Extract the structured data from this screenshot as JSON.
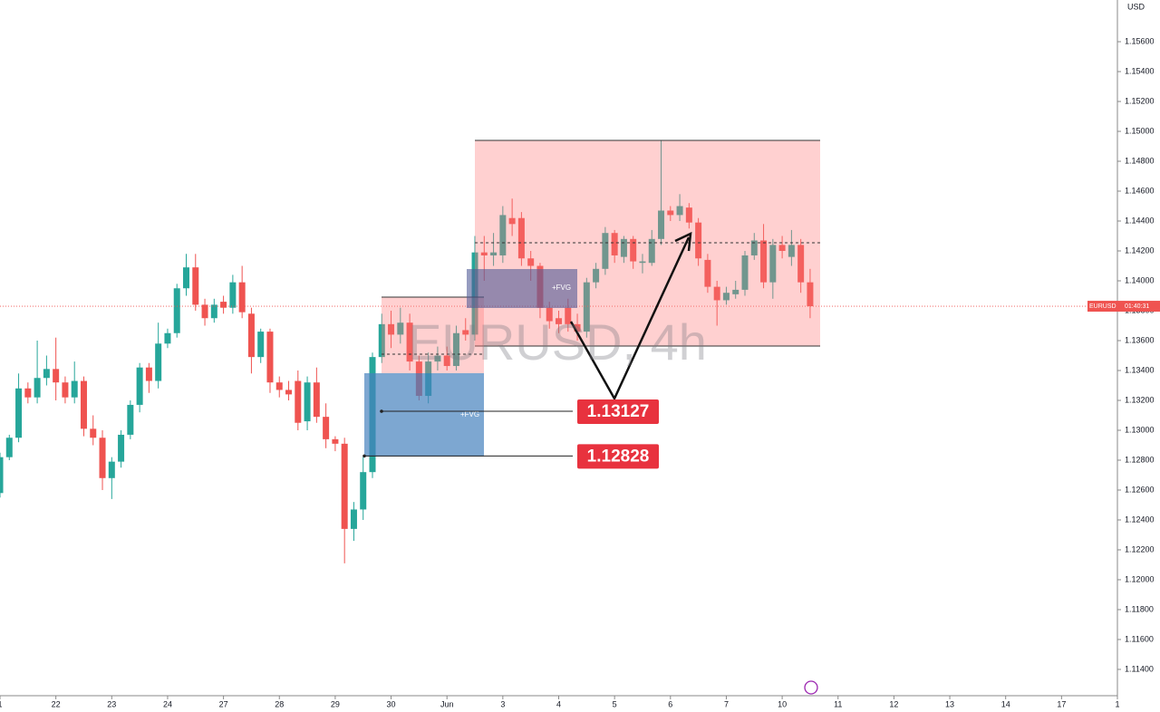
{
  "chart_data": {
    "type": "candlestick",
    "title": "EURUSD, 4h",
    "currency": "USD",
    "up_color": "#26a69a",
    "down_color": "#ef5350",
    "open": [
      1.1258,
      1.1282,
      1.1295,
      1.1328,
      1.1322,
      1.1335,
      1.1341,
      1.1332,
      1.1322,
      1.1333,
      1.1301,
      1.1295,
      1.1268,
      1.1279,
      1.1297,
      1.1317,
      1.1342,
      1.1333,
      1.1358,
      1.1365,
      1.1395,
      1.1409,
      1.1384,
      1.1375,
      1.1386,
      1.1382,
      1.1399,
      1.1378,
      1.1349,
      1.1366,
      1.1332,
      1.1327,
      1.1333,
      1.1306,
      1.1332,
      1.1309,
      1.1294,
      1.1291,
      1.1234,
      1.1247,
      1.1272,
      1.1349,
      1.1371,
      1.1364,
      1.1372,
      1.1346,
      1.1323,
      1.1346,
      1.135,
      1.1343,
      1.1367,
      1.1364,
      1.1419,
      1.1417,
      1.1417,
      1.1442,
      1.1442,
      1.1415,
      1.141,
      1.1382,
      1.1375,
      1.1382,
      1.1371,
      1.1366,
      1.1399,
      1.1408,
      1.1432,
      1.1416,
      1.1428,
      1.1412,
      1.1412,
      1.1428,
      1.1447,
      1.1444,
      1.1449,
      1.1439,
      1.1414,
      1.1396,
      1.1387,
      1.1391,
      1.1394,
      1.1417,
      1.1427,
      1.1399,
      1.1424,
      1.1416,
      1.1424,
      1.1399
    ],
    "high": [
      1.1285,
      1.1297,
      1.1338,
      1.1332,
      1.136,
      1.135,
      1.1362,
      1.1336,
      1.1346,
      1.1336,
      1.131,
      1.13,
      1.1282,
      1.13,
      1.132,
      1.1345,
      1.1345,
      1.1372,
      1.1368,
      1.1398,
      1.1418,
      1.1418,
      1.1388,
      1.1388,
      1.139,
      1.1404,
      1.141,
      1.1382,
      1.1368,
      1.1368,
      1.1336,
      1.1333,
      1.134,
      1.1336,
      1.1342,
      1.1318,
      1.1296,
      1.1295,
      1.1252,
      1.1282,
      1.1352,
      1.1378,
      1.138,
      1.1382,
      1.1378,
      1.135,
      1.1352,
      1.1356,
      1.1356,
      1.137,
      1.1375,
      1.143,
      1.143,
      1.1432,
      1.145,
      1.1455,
      1.1446,
      1.142,
      1.1412,
      1.1386,
      1.138,
      1.1388,
      1.1378,
      1.1402,
      1.1412,
      1.1436,
      1.1434,
      1.143,
      1.143,
      1.1418,
      1.1434,
      1.1494,
      1.145,
      1.1458,
      1.1452,
      1.1442,
      1.1418,
      1.14,
      1.1396,
      1.14,
      1.142,
      1.1432,
      1.1438,
      1.1428,
      1.143,
      1.1434,
      1.1428,
      1.1408
    ],
    "low": [
      1.1255,
      1.128,
      1.1292,
      1.1318,
      1.1318,
      1.133,
      1.132,
      1.1318,
      1.1318,
      1.1296,
      1.129,
      1.126,
      1.1254,
      1.1275,
      1.1294,
      1.1312,
      1.1325,
      1.1328,
      1.1355,
      1.1362,
      1.139,
      1.138,
      1.137,
      1.1372,
      1.1378,
      1.1378,
      1.1375,
      1.1338,
      1.1345,
      1.1325,
      1.1322,
      1.132,
      1.13,
      1.13,
      1.1305,
      1.1288,
      1.1286,
      1.1211,
      1.1226,
      1.124,
      1.1268,
      1.1345,
      1.1355,
      1.1358,
      1.134,
      1.132,
      1.1318,
      1.134,
      1.134,
      1.134,
      1.136,
      1.136,
      1.14,
      1.141,
      1.1412,
      1.143,
      1.141,
      1.14,
      1.1375,
      1.1368,
      1.1365,
      1.1366,
      1.136,
      1.1362,
      1.1395,
      1.1404,
      1.1412,
      1.1412,
      1.1408,
      1.1405,
      1.141,
      1.1424,
      1.144,
      1.144,
      1.1435,
      1.141,
      1.1392,
      1.137,
      1.1384,
      1.1388,
      1.139,
      1.1414,
      1.1395,
      1.1388,
      1.1415,
      1.141,
      1.1392,
      1.1375
    ],
    "close": [
      1.1282,
      1.1295,
      1.1328,
      1.1322,
      1.1335,
      1.1341,
      1.1332,
      1.1322,
      1.1333,
      1.1301,
      1.1295,
      1.1268,
      1.1279,
      1.1297,
      1.1317,
      1.1342,
      1.1333,
      1.1358,
      1.1365,
      1.1395,
      1.1409,
      1.1384,
      1.1375,
      1.1384,
      1.1382,
      1.1399,
      1.1379,
      1.1349,
      1.1366,
      1.1332,
      1.1327,
      1.1324,
      1.1305,
      1.1332,
      1.1309,
      1.1294,
      1.1291,
      1.1234,
      1.1247,
      1.1272,
      1.1349,
      1.1371,
      1.1364,
      1.1372,
      1.1346,
      1.1323,
      1.1346,
      1.135,
      1.1343,
      1.1365,
      1.1364,
      1.1419,
      1.1417,
      1.1419,
      1.1444,
      1.1438,
      1.1415,
      1.141,
      1.1382,
      1.1373,
      1.1371,
      1.1371,
      1.1366,
      1.1399,
      1.1408,
      1.1432,
      1.1417,
      1.1428,
      1.1413,
      1.1413,
      1.1428,
      1.1447,
      1.1444,
      1.145,
      1.1439,
      1.1415,
      1.1396,
      1.1387,
      1.1392,
      1.1394,
      1.1417,
      1.1427,
      1.1399,
      1.1424,
      1.142,
      1.1424,
      1.1399,
      1.1383
    ],
    "xlim": [
      0,
      120
    ],
    "xticks": [
      {
        "value": 0,
        "label": "1"
      },
      {
        "value": 6,
        "label": "22"
      },
      {
        "value": 12,
        "label": "23"
      },
      {
        "value": 18,
        "label": "24"
      },
      {
        "value": 24,
        "label": "27"
      },
      {
        "value": 30,
        "label": "28"
      },
      {
        "value": 36,
        "label": "29"
      },
      {
        "value": 42,
        "label": "30"
      },
      {
        "value": 48,
        "label": "Jun"
      },
      {
        "value": 54,
        "label": "3"
      },
      {
        "value": 60,
        "label": "4"
      },
      {
        "value": 66,
        "label": "5"
      },
      {
        "value": 72,
        "label": "6"
      },
      {
        "value": 78,
        "label": "7"
      },
      {
        "value": 84,
        "label": "10"
      },
      {
        "value": 90,
        "label": "11"
      },
      {
        "value": 96,
        "label": "12"
      },
      {
        "value": 102,
        "label": "13"
      },
      {
        "value": 108,
        "label": "14"
      },
      {
        "value": 114,
        "label": "17"
      },
      {
        "value": 120,
        "label": "1"
      }
    ],
    "ylim": [
      1.11224,
      1.15879
    ],
    "yticks": [
      {
        "value": 1.156,
        "label": "1.15600"
      },
      {
        "value": 1.154,
        "label": "1.15400"
      },
      {
        "value": 1.152,
        "label": "1.15200"
      },
      {
        "value": 1.15,
        "label": "1.15000"
      },
      {
        "value": 1.148,
        "label": "1.14800"
      },
      {
        "value": 1.146,
        "label": "1.14600"
      },
      {
        "value": 1.144,
        "label": "1.14400"
      },
      {
        "value": 1.142,
        "label": "1.14200"
      },
      {
        "value": 1.14,
        "label": "1.14000"
      },
      {
        "value": 1.138,
        "label": "1.13800"
      },
      {
        "value": 1.136,
        "label": "1.13600"
      },
      {
        "value": 1.134,
        "label": "1.13400"
      },
      {
        "value": 1.132,
        "label": "1.13200"
      },
      {
        "value": 1.13,
        "label": "1.13000"
      },
      {
        "value": 1.128,
        "label": "1.12800"
      },
      {
        "value": 1.126,
        "label": "1.12600"
      },
      {
        "value": 1.124,
        "label": "1.12400"
      },
      {
        "value": 1.122,
        "label": "1.12200"
      },
      {
        "value": 1.12,
        "label": "1.12000"
      },
      {
        "value": 1.118,
        "label": "1.11800"
      },
      {
        "value": 1.116,
        "label": "1.11600"
      },
      {
        "value": 1.114,
        "label": "1.11400"
      }
    ],
    "annotations": {
      "fvg": [
        "+FVG",
        "+FVG"
      ],
      "levels": [
        1.13127,
        1.12828
      ],
      "price_tag": {
        "symbol": "EURUSD",
        "countdown": "01:40:31"
      }
    }
  }
}
